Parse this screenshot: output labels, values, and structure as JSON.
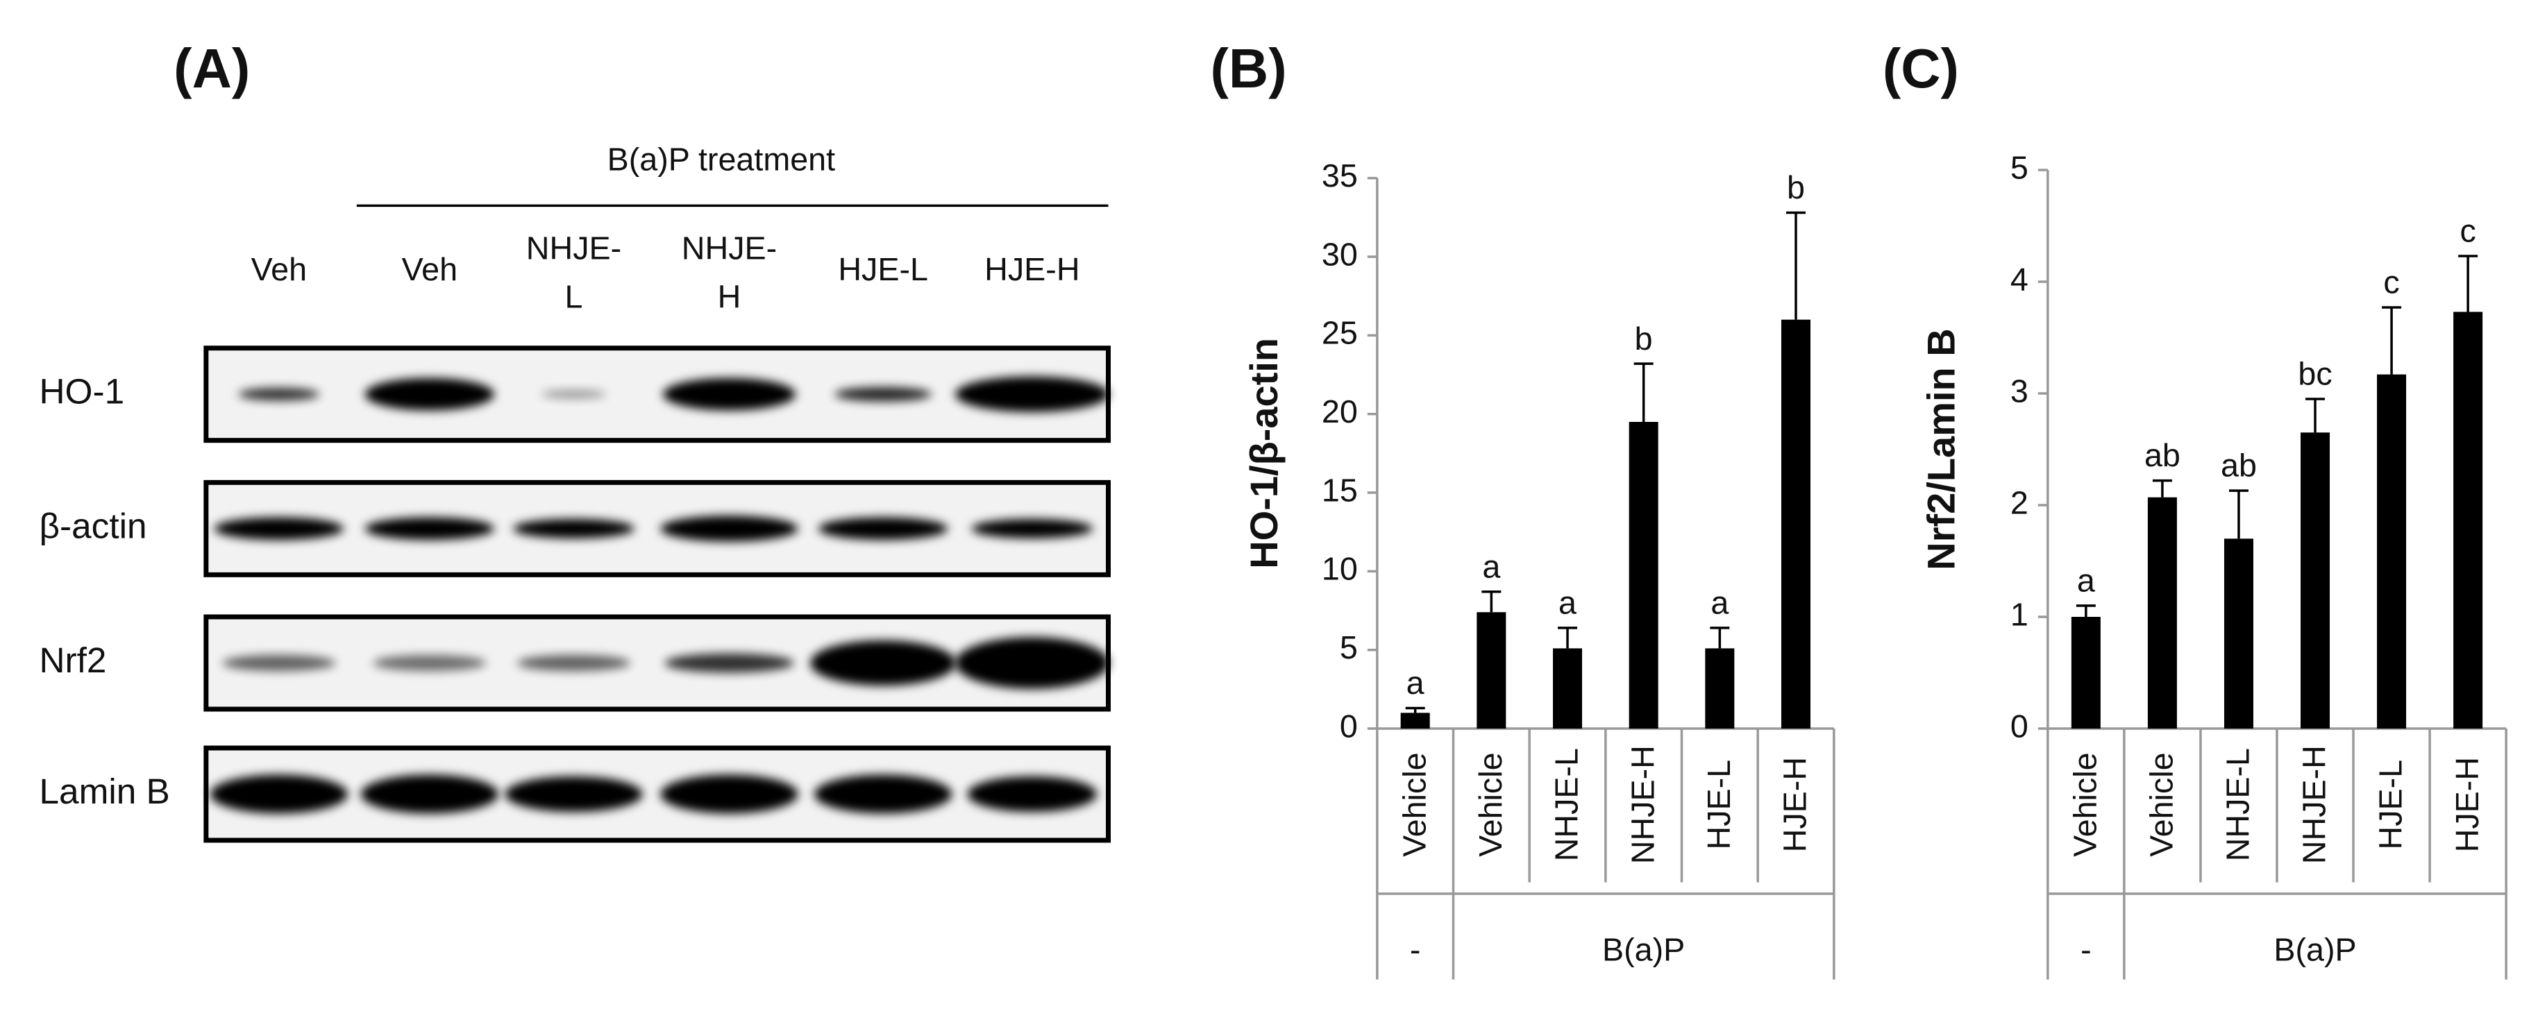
{
  "panel_a": {
    "label": "(A)",
    "header": "B(a)P treatment",
    "lanes": [
      [
        "Veh"
      ],
      [
        "Veh"
      ],
      [
        "NHJE-",
        "L"
      ],
      [
        "NHJE-",
        "H"
      ],
      [
        "HJE-L"
      ],
      [
        "HJE-H"
      ]
    ],
    "rows": [
      "HO-1",
      "β-actin",
      "Nrf2",
      "Lamin B"
    ]
  },
  "chart_data": [
    {
      "type": "bar",
      "panel_label": "(B)",
      "y_label": "HO-1/β-actin",
      "categories": [
        "Vehicle",
        "Vehicle",
        "NHJE-L",
        "NHJE-H",
        "HJE-L",
        "HJE-H"
      ],
      "group_labels": [
        "-",
        "B(a)P"
      ],
      "values": [
        1.0,
        7.4,
        5.1,
        19.5,
        5.1,
        26.0
      ],
      "errors": [
        0.3,
        1.3,
        1.3,
        3.7,
        1.3,
        6.8
      ],
      "annotations": [
        "a",
        "a",
        "a",
        "b",
        "a",
        "b"
      ],
      "color": "#000000",
      "ylim": [
        0,
        35
      ],
      "yticks": [
        0,
        5,
        10,
        15,
        20,
        25,
        30,
        35
      ]
    },
    {
      "type": "bar",
      "panel_label": "(C)",
      "y_label": "Nrf2/Lamin B",
      "categories": [
        "Vehicle",
        "Vehicle",
        "NHJE-L",
        "NHJE-H",
        "HJE-L",
        "HJE-H"
      ],
      "group_labels": [
        "-",
        "B(a)P"
      ],
      "values": [
        1.0,
        2.07,
        1.7,
        2.65,
        3.17,
        3.73
      ],
      "errors": [
        0.1,
        0.15,
        0.43,
        0.3,
        0.6,
        0.5
      ],
      "annotations": [
        "a",
        "ab",
        "ab",
        "bc",
        "c",
        "c"
      ],
      "color": "#000000",
      "ylim": [
        0,
        5
      ],
      "yticks": [
        0,
        1,
        2,
        3,
        4,
        5
      ]
    }
  ]
}
